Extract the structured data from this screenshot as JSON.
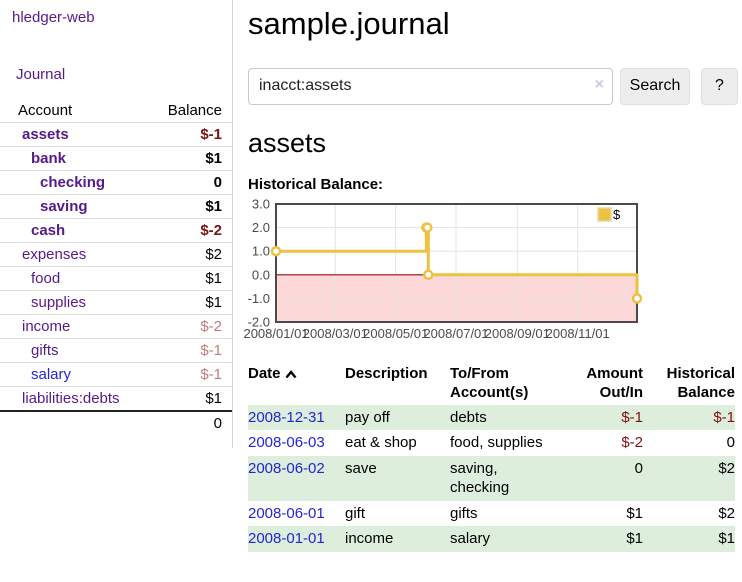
{
  "colors": {
    "link_purple": "#551a8b",
    "link_blue": "#2424d6",
    "negative_strong": "#7d1212",
    "negative_soft": "#c07b7b",
    "row_green": "#ddeedd"
  },
  "sidebar": {
    "brand": "hledger-web",
    "journal_link": "Journal",
    "accounts": {
      "headers": {
        "account": "Account",
        "balance": "Balance"
      },
      "rows": [
        {
          "name": "assets",
          "balance": "$-1",
          "depth": 1,
          "bold": true,
          "balance_style": "neg-strong"
        },
        {
          "name": "bank",
          "balance": "$1",
          "depth": 2,
          "bold": true,
          "balance_style": ""
        },
        {
          "name": "checking",
          "balance": "0",
          "depth": 3,
          "bold": true,
          "balance_style": ""
        },
        {
          "name": "saving",
          "balance": "$1",
          "depth": 3,
          "bold": true,
          "balance_style": ""
        },
        {
          "name": "cash",
          "balance": "$-2",
          "depth": 2,
          "bold": true,
          "balance_style": "neg-strong"
        },
        {
          "name": "expenses",
          "balance": "$2",
          "depth": 1,
          "bold": false,
          "balance_style": ""
        },
        {
          "name": "food",
          "balance": "$1",
          "depth": 2,
          "bold": false,
          "balance_style": ""
        },
        {
          "name": "supplies",
          "balance": "$1",
          "depth": 2,
          "bold": false,
          "balance_style": ""
        },
        {
          "name": "income",
          "balance": "$-2",
          "depth": 1,
          "bold": false,
          "balance_style": "neg-soft"
        },
        {
          "name": "gifts",
          "balance": "$-1",
          "depth": 2,
          "bold": false,
          "balance_style": "neg-soft"
        },
        {
          "name": "salary",
          "balance": "$-1",
          "depth": 2,
          "bold": false,
          "balance_style": "neg-soft",
          "link_style": "new"
        },
        {
          "name": "liabilities:debts",
          "balance": "$1",
          "depth": 1,
          "bold": false,
          "balance_style": ""
        }
      ],
      "total": "0"
    }
  },
  "header": {
    "title": "sample.journal",
    "search": {
      "value": "inacct:assets",
      "clear_icon": "×",
      "button": "Search",
      "help_button": "?"
    }
  },
  "register": {
    "heading": "assets",
    "chart_label": "Historical Balance:",
    "table": {
      "headers": {
        "date": "Date",
        "description": "Description",
        "tofrom": "To/From Account(s)",
        "amount": "Amount Out/In",
        "balance": "Historical Balance"
      },
      "rows": [
        {
          "date": "2008-12-31",
          "description": "pay off",
          "accounts": "debts",
          "amount": "$-1",
          "balance": "$-1",
          "amount_neg": true,
          "balance_neg": true
        },
        {
          "date": "2008-06-03",
          "description": "eat & shop",
          "accounts": "food, supplies",
          "amount": "$-2",
          "balance": "0",
          "amount_neg": true,
          "balance_neg": false
        },
        {
          "date": "2008-06-02",
          "description": "save",
          "accounts": "saving, checking",
          "amount": "0",
          "balance": "$2",
          "amount_neg": false,
          "balance_neg": false
        },
        {
          "date": "2008-06-01",
          "description": "gift",
          "accounts": "gifts",
          "amount": "$1",
          "balance": "$2",
          "amount_neg": false,
          "balance_neg": false
        },
        {
          "date": "2008-01-01",
          "description": "income",
          "accounts": "salary",
          "amount": "$1",
          "balance": "$1",
          "amount_neg": false,
          "balance_neg": false
        }
      ]
    }
  },
  "chart_data": {
    "type": "line",
    "title": "Historical Balance:",
    "steps": true,
    "series": [
      {
        "name": "$",
        "points": [
          [
            "2008-01-01",
            1
          ],
          [
            "2008-06-01",
            2
          ],
          [
            "2008-06-02",
            2
          ],
          [
            "2008-06-03",
            0
          ],
          [
            "2008-12-31",
            -1
          ]
        ]
      }
    ],
    "xlim": [
      "2008-01-01",
      "2008-12-31"
    ],
    "ylim": [
      -2,
      3
    ],
    "x_ticks": [
      [
        "2008-01-01",
        "2008/01/01"
      ],
      [
        "2008-03-01",
        "2008/03/01"
      ],
      [
        "2008-05-01",
        "2008/05/01"
      ],
      [
        "2008-07-01",
        "2008/07/01"
      ],
      [
        "2008-09-01",
        "2008/09/01"
      ],
      [
        "2008-11-01",
        "2008/11/01"
      ]
    ],
    "y_ticks": [
      [
        3,
        "3.0"
      ],
      [
        2,
        "2.0"
      ],
      [
        1,
        "1.0"
      ],
      [
        0,
        "0.0"
      ],
      [
        -1,
        "-1.0"
      ],
      [
        -2,
        "-2.0"
      ]
    ],
    "legend": {
      "label": "$",
      "position": "top-right"
    },
    "grid": true,
    "colors": {
      "line": "#edc240",
      "marker_fill": "#ffffff",
      "legend_box_border": "#e8d79f",
      "negative_region": "#fcd8d8",
      "zero_line": "#991111",
      "grid": "#e3e3e3",
      "border": "#4a4a4a",
      "tick_text": "#4b4b4b"
    }
  }
}
